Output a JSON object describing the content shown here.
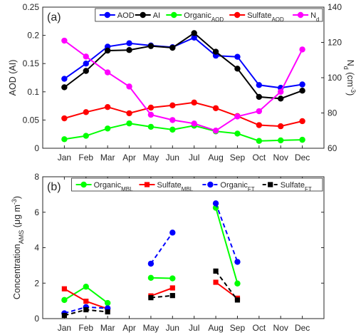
{
  "chart_data": [
    {
      "type": "line",
      "panel_label": "(a)",
      "categories": [
        "Jan",
        "Feb",
        "Mar",
        "Apr",
        "May",
        "Jun",
        "Jul",
        "Aug",
        "Sep",
        "Oct",
        "Nov",
        "Dec"
      ],
      "ylabel": "AOD (AI)",
      "ylim": [
        0,
        0.25
      ],
      "yticks": [
        "0",
        "0.05",
        "0.1",
        "0.15",
        "0.2",
        "0.25"
      ],
      "y2label": "N_d (cm^-3)",
      "y2lim": [
        60,
        140
      ],
      "y2ticks": [
        "60",
        "80",
        "100",
        "120",
        "140"
      ],
      "grid": false,
      "legend_position": "top-right",
      "series": [
        {
          "name": "AOD",
          "color": "#0000ff",
          "axis": "left",
          "marker": "circle",
          "line": "solid",
          "values": [
            0.123,
            0.15,
            0.18,
            0.186,
            0.182,
            0.179,
            0.196,
            0.164,
            0.162,
            0.112,
            0.107,
            0.113
          ]
        },
        {
          "name": "AI",
          "color": "#000000",
          "axis": "left",
          "marker": "circle",
          "line": "solid",
          "values": [
            0.108,
            0.137,
            0.173,
            0.174,
            0.181,
            0.178,
            0.204,
            0.171,
            0.141,
            0.091,
            0.088,
            0.102
          ]
        },
        {
          "name": "Organic_AOD",
          "color": "#00ff00",
          "axis": "left",
          "marker": "circle",
          "line": "solid",
          "values": [
            0.016,
            0.022,
            0.035,
            0.044,
            0.038,
            0.033,
            0.04,
            0.03,
            0.026,
            0.013,
            0.014,
            0.015
          ]
        },
        {
          "name": "Sulfate_AOD",
          "color": "#ff0000",
          "axis": "left",
          "marker": "circle",
          "line": "solid",
          "values": [
            0.053,
            0.064,
            0.073,
            0.062,
            0.072,
            0.076,
            0.081,
            0.071,
            0.057,
            0.041,
            0.039,
            0.048
          ]
        },
        {
          "name": "N_d",
          "color": "#ff00ff",
          "axis": "right",
          "marker": "circle",
          "line": "solid",
          "values": [
            121,
            112,
            103,
            95,
            79,
            76,
            74,
            70,
            78,
            81,
            92,
            116
          ]
        }
      ]
    },
    {
      "type": "line",
      "panel_label": "(b)",
      "categories": [
        "Jan",
        "Feb",
        "Mar",
        "Apr",
        "May",
        "Jun",
        "Jul",
        "Aug",
        "Sep",
        "Oct",
        "Nov",
        "Dec"
      ],
      "ylabel": "Concentration_AMS (μg m^-3)",
      "ylim": [
        0,
        8
      ],
      "yticks": [
        "0",
        "2",
        "4",
        "6",
        "8"
      ],
      "grid": false,
      "legend_position": "top-right",
      "series": [
        {
          "name": "Organic_MBL",
          "color": "#00ff00",
          "marker": "circle",
          "line": "solid",
          "values": [
            1.05,
            1.8,
            0.88,
            null,
            2.3,
            2.27,
            null,
            6.25,
            1.98,
            null,
            null,
            null
          ]
        },
        {
          "name": "Sulfate_MBL",
          "color": "#ff0000",
          "marker": "square",
          "line": "solid",
          "values": [
            1.68,
            0.98,
            0.55,
            null,
            1.28,
            1.73,
            null,
            2.05,
            1.15,
            null,
            null,
            null
          ]
        },
        {
          "name": "Organic_FT",
          "color": "#0000ff",
          "marker": "circle",
          "line": "dashed",
          "values": [
            0.3,
            0.65,
            0.58,
            null,
            3.1,
            4.85,
            null,
            6.5,
            3.2,
            null,
            null,
            null
          ]
        },
        {
          "name": "Sulfate_FT",
          "color": "#000000",
          "marker": "square",
          "line": "dashed",
          "values": [
            0.18,
            0.5,
            0.38,
            null,
            1.18,
            1.3,
            null,
            2.68,
            1.05,
            null,
            null,
            null
          ]
        }
      ]
    }
  ]
}
